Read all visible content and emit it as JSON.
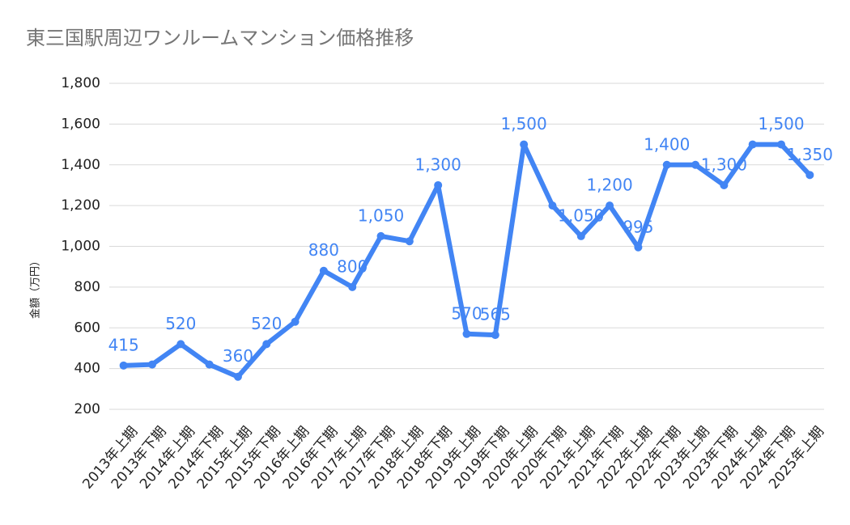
{
  "chart_data": {
    "type": "line",
    "title": "東三国駅周辺ワンルームマンション価格推移",
    "y_label": "金額（万円）",
    "categories": [
      "2013年上期",
      "2013年下期",
      "2014年上期",
      "2014年下期",
      "2015年上期",
      "2015年下期",
      "2016年上期",
      "2016年下期",
      "2017年上期",
      "2017年下期",
      "2018年上期",
      "2018年下期",
      "2019年上期",
      "2019年下期",
      "2020年上期",
      "2020年下期",
      "2021年上期",
      "2021年下期",
      "2022年上期",
      "2022年下期",
      "2023年上期",
      "2023年下期",
      "2024年上期",
      "2024年下期",
      "2025年上期"
    ],
    "values": [
      415,
      420,
      520,
      420,
      360,
      520,
      630,
      880,
      800,
      1050,
      1025,
      1300,
      570,
      565,
      1500,
      1200,
      1050,
      1200,
      995,
      1400,
      1400,
      1300,
      1500,
      1500,
      1350
    ],
    "value_labels": [
      "415",
      null,
      "520",
      null,
      "360",
      "520",
      null,
      "880",
      "800",
      "1,050",
      null,
      "1,300",
      "570",
      "565",
      "1,500",
      null,
      "1,050",
      "1,200",
      "995",
      "1,400",
      null,
      "1,300",
      null,
      "1,500",
      "1,350"
    ],
    "color": "#4285f4",
    "ylim": [
      200,
      1800
    ],
    "yticks": [
      200,
      400,
      600,
      800,
      {
        "value": 1000,
        "label": "1,000"
      },
      {
        "value": 1200,
        "label": "1,200"
      },
      {
        "value": 1400,
        "label": "1,400"
      },
      {
        "value": 1600,
        "label": "1,600"
      },
      {
        "value": 1800,
        "label": "1,800"
      }
    ],
    "grid": true
  }
}
